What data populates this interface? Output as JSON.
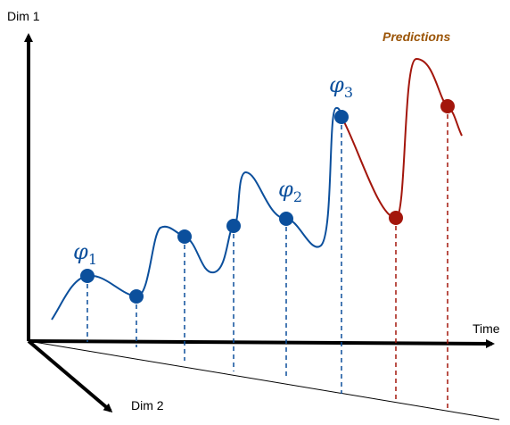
{
  "axes": {
    "dim1_label": "Dim 1",
    "dim2_label": "Dim 2",
    "time_label": "Time"
  },
  "predictions_label": "Predictions",
  "phi_labels": [
    {
      "symbol": "φ",
      "subscript": "1"
    },
    {
      "symbol": "φ",
      "subscript": "2"
    },
    {
      "symbol": "φ",
      "subscript": "3"
    }
  ],
  "colors": {
    "observed": "#0b4f9c",
    "predicted": "#a3160c",
    "predictions_text": "#9b5508",
    "axis": "#000000"
  }
}
